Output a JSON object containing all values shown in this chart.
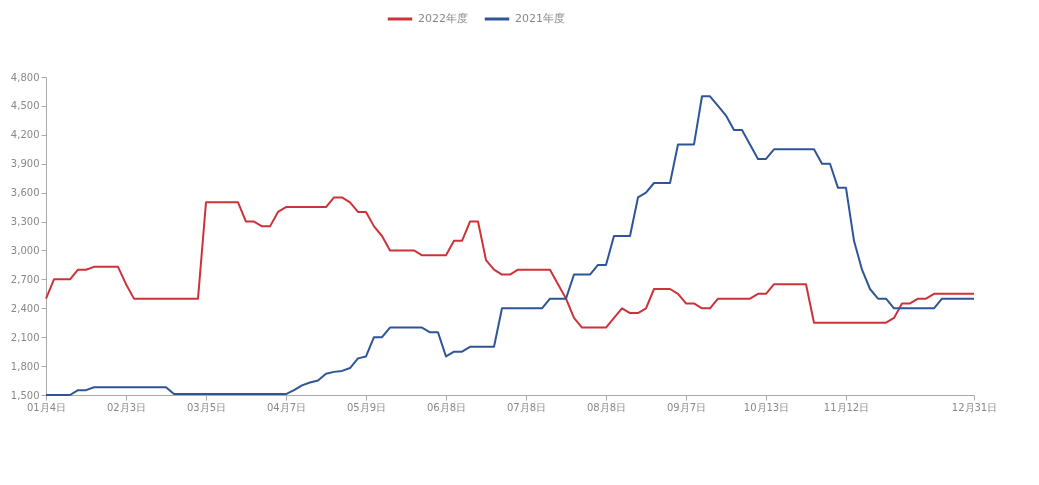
{
  "chart_data": {
    "type": "line",
    "categories": [
      "01月4日",
      null,
      null,
      null,
      null,
      null,
      null,
      null,
      null,
      null,
      "02月3日",
      null,
      null,
      null,
      null,
      null,
      null,
      null,
      null,
      null,
      "03月5日",
      null,
      null,
      null,
      null,
      null,
      null,
      null,
      null,
      null,
      "04月7日",
      null,
      null,
      null,
      null,
      null,
      null,
      null,
      null,
      null,
      "05月9日",
      null,
      null,
      null,
      null,
      null,
      null,
      null,
      null,
      null,
      "06月8日",
      null,
      null,
      null,
      null,
      null,
      null,
      null,
      null,
      null,
      "07月8日",
      null,
      null,
      null,
      null,
      null,
      null,
      null,
      null,
      null,
      "08月8日",
      null,
      null,
      null,
      null,
      null,
      null,
      null,
      null,
      null,
      "09月7日",
      null,
      null,
      null,
      null,
      null,
      null,
      null,
      null,
      null,
      "10月13日",
      null,
      null,
      null,
      null,
      null,
      null,
      null,
      null,
      null,
      "11月12日",
      null,
      null,
      null,
      null,
      null,
      null,
      null,
      null,
      null,
      null,
      null,
      null,
      null,
      null,
      null,
      "12月31日"
    ],
    "series": [
      {
        "name": "2022年度",
        "color": "#cc3338",
        "values": [
          2500,
          2700,
          2700,
          2700,
          2800,
          2800,
          2830,
          2830,
          2830,
          2830,
          2650,
          2500,
          2500,
          2500,
          2500,
          2500,
          2500,
          2500,
          2500,
          2500,
          3500,
          3500,
          3500,
          3500,
          3500,
          3300,
          3300,
          3250,
          3250,
          3400,
          3450,
          3450,
          3450,
          3450,
          3450,
          3450,
          3550,
          3550,
          3500,
          3400,
          3400,
          3250,
          3150,
          3000,
          3000,
          3000,
          3000,
          2950,
          2950,
          2950,
          2950,
          3100,
          3100,
          3300,
          3300,
          2900,
          2800,
          2750,
          2750,
          2800,
          2800,
          2800,
          2800,
          2800,
          2650,
          2500,
          2300,
          2200,
          2200,
          2200,
          2200,
          2300,
          2400,
          2350,
          2350,
          2400,
          2600,
          2600,
          2600,
          2550,
          2450,
          2450,
          2400,
          2400,
          2500,
          2500,
          2500,
          2500,
          2500,
          2550,
          2550,
          2650,
          2650,
          2650,
          2650,
          2650,
          2250,
          2250,
          2250,
          2250,
          2250,
          2250,
          2250,
          2250,
          2250,
          2250,
          2300,
          2450,
          2450,
          2500,
          2500,
          2550,
          2550,
          2550,
          2550,
          2550,
          2550
        ]
      },
      {
        "name": "2021年度",
        "color": "#2e5597",
        "values": [
          1500,
          1500,
          1500,
          1500,
          1550,
          1550,
          1580,
          1580,
          1580,
          1580,
          1580,
          1580,
          1580,
          1580,
          1580,
          1580,
          1510,
          1510,
          1510,
          1510,
          1510,
          1510,
          1510,
          1510,
          1510,
          1510,
          1510,
          1510,
          1510,
          1510,
          1510,
          1550,
          1600,
          1630,
          1650,
          1720,
          1740,
          1750,
          1780,
          1880,
          1900,
          2100,
          2100,
          2200,
          2200,
          2200,
          2200,
          2200,
          2150,
          2150,
          1900,
          1950,
          1950,
          2000,
          2000,
          2000,
          2000,
          2400,
          2400,
          2400,
          2400,
          2400,
          2400,
          2500,
          2500,
          2500,
          2750,
          2750,
          2750,
          2850,
          2850,
          3150,
          3150,
          3150,
          3550,
          3600,
          3700,
          3700,
          3700,
          4100,
          4100,
          4100,
          4600,
          4600,
          4500,
          4400,
          4250,
          4250,
          4100,
          3950,
          3950,
          4050,
          4050,
          4050,
          4050,
          4050,
          4050,
          3900,
          3900,
          3650,
          3650,
          3100,
          2800,
          2600,
          2500,
          2500,
          2400,
          2400,
          2400,
          2400,
          2400,
          2400,
          2500,
          2500,
          2500,
          2500,
          2500
        ]
      }
    ],
    "ylim": [
      1500,
      4800
    ],
    "yticks": [
      {
        "value": 1500,
        "label": "1,500"
      },
      {
        "value": 1800,
        "label": "1,800"
      },
      {
        "value": 2100,
        "label": "2,100"
      },
      {
        "value": 2400,
        "label": "2,400"
      },
      {
        "value": 2700,
        "label": "2,700"
      },
      {
        "value": 3000,
        "label": "3,000"
      },
      {
        "value": 3300,
        "label": "3,300"
      },
      {
        "value": 3600,
        "label": "3,600"
      },
      {
        "value": 3900,
        "label": "3,900"
      },
      {
        "value": 4200,
        "label": "4,200"
      },
      {
        "value": 4500,
        "label": "4,500"
      },
      {
        "value": 4800,
        "label": "4,800"
      }
    ],
    "grid": false,
    "legend": "top",
    "marker": "none",
    "line_style": "solid"
  }
}
